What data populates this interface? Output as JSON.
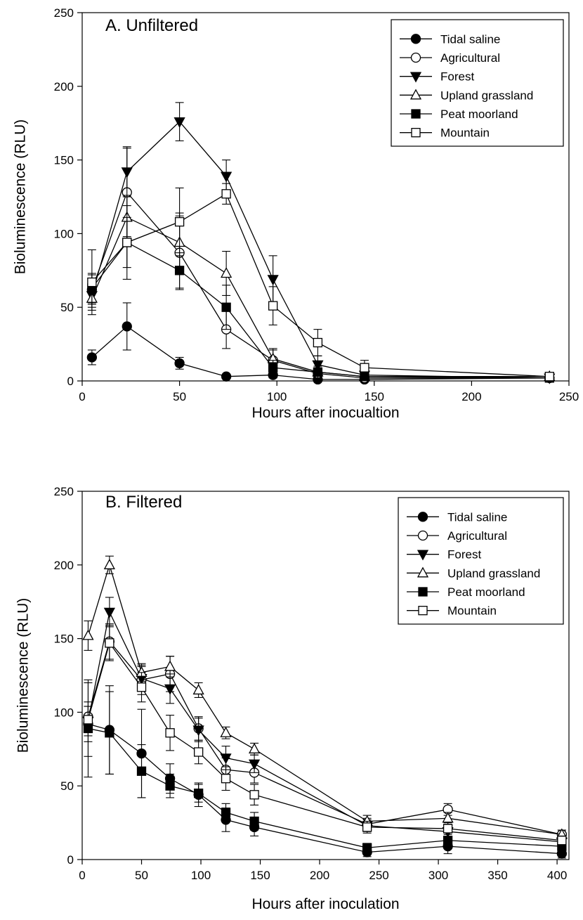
{
  "chart_data": [
    {
      "type": "line",
      "title": "A. Unfiltered",
      "xlabel": "Hours after inocualtion",
      "ylabel": "Bioluminescence (RLU)",
      "xlim": [
        0,
        250
      ],
      "ylim": [
        0,
        250
      ],
      "xticks": [
        0,
        50,
        100,
        150,
        200,
        250
      ],
      "yticks": [
        0,
        50,
        100,
        150,
        200,
        250
      ],
      "grid": false,
      "legend_position": "top-right",
      "x": [
        5,
        23,
        50,
        74,
        98,
        121,
        145,
        240
      ],
      "series": [
        {
          "name": "Tidal saline",
          "marker": "circle",
          "filled": true,
          "values": [
            16,
            37,
            12,
            3,
            4,
            1,
            1,
            2
          ],
          "errors": [
            5,
            16,
            4,
            1,
            2,
            1,
            1,
            1
          ]
        },
        {
          "name": "Agricultural",
          "marker": "circle",
          "filled": false,
          "values": [
            62,
            128,
            87,
            35,
            14,
            5,
            2,
            2
          ],
          "errors": [
            10,
            30,
            25,
            13,
            8,
            3,
            1,
            1
          ]
        },
        {
          "name": "Forest",
          "marker": "triangle-down",
          "filled": true,
          "values": [
            58,
            142,
            176,
            139,
            69,
            11,
            4,
            2
          ],
          "errors": [
            8,
            17,
            13,
            11,
            16,
            6,
            3,
            1
          ]
        },
        {
          "name": "Upland grassland",
          "marker": "triangle-up",
          "filled": false,
          "values": [
            56,
            111,
            94,
            73,
            15,
            6,
            3,
            3
          ],
          "errors": [
            8,
            15,
            20,
            15,
            6,
            3,
            2,
            1
          ]
        },
        {
          "name": "Peat moorland",
          "marker": "square",
          "filled": true,
          "values": [
            63,
            94,
            75,
            50,
            9,
            6,
            3,
            2
          ],
          "errors": [
            10,
            17,
            12,
            15,
            5,
            4,
            2,
            1
          ]
        },
        {
          "name": "Mountain",
          "marker": "square",
          "filled": false,
          "values": [
            67,
            94,
            108,
            127,
            51,
            26,
            9,
            3
          ],
          "errors": [
            22,
            25,
            23,
            7,
            13,
            9,
            5,
            1
          ]
        }
      ]
    },
    {
      "type": "line",
      "title": "B. Filtered",
      "xlabel": "Hours after inoculation",
      "ylabel": "Bioluminescence (RLU)",
      "xlim": [
        0,
        410
      ],
      "ylim": [
        0,
        250
      ],
      "xticks": [
        0,
        50,
        100,
        150,
        200,
        250,
        300,
        350,
        400
      ],
      "yticks": [
        0,
        50,
        100,
        150,
        200,
        250
      ],
      "grid": false,
      "legend_position": "top-right",
      "x": [
        5,
        23,
        50,
        74,
        98,
        121,
        145,
        240,
        308,
        404
      ],
      "series": [
        {
          "name": "Tidal saline",
          "marker": "circle",
          "filled": true,
          "values": [
            92,
            88,
            72,
            55,
            44,
            27,
            22,
            5,
            9,
            4
          ],
          "errors": [
            12,
            30,
            30,
            10,
            8,
            8,
            6,
            3,
            5,
            3
          ]
        },
        {
          "name": "Agricultural",
          "marker": "circle",
          "filled": false,
          "values": [
            97,
            148,
            122,
            126,
            89,
            61,
            59,
            24,
            34,
            17
          ],
          "errors": [
            10,
            12,
            10,
            12,
            8,
            8,
            7,
            4,
            4,
            3
          ]
        },
        {
          "name": "Forest",
          "marker": "triangle-down",
          "filled": true,
          "values": [
            94,
            168,
            123,
            116,
            88,
            69,
            65,
            23,
            19,
            12
          ],
          "errors": [
            10,
            10,
            8,
            10,
            8,
            8,
            6,
            4,
            4,
            3
          ]
        },
        {
          "name": "Upland grassland",
          "marker": "triangle-up",
          "filled": false,
          "values": [
            152,
            200,
            127,
            131,
            115,
            86,
            75,
            26,
            28,
            17
          ],
          "errors": [
            10,
            6,
            6,
            7,
            5,
            4,
            4,
            4,
            4,
            3
          ]
        },
        {
          "name": "Peat moorland",
          "marker": "square",
          "filled": true,
          "values": [
            89,
            86,
            60,
            50,
            45,
            32,
            26,
            8,
            13,
            9
          ],
          "errors": [
            33,
            28,
            18,
            8,
            6,
            6,
            6,
            3,
            5,
            3
          ]
        },
        {
          "name": "Mountain",
          "marker": "square",
          "filled": false,
          "values": [
            95,
            147,
            117,
            86,
            73,
            55,
            44,
            22,
            21,
            13
          ],
          "errors": [
            25,
            12,
            10,
            12,
            8,
            8,
            7,
            4,
            4,
            3
          ]
        }
      ]
    }
  ]
}
